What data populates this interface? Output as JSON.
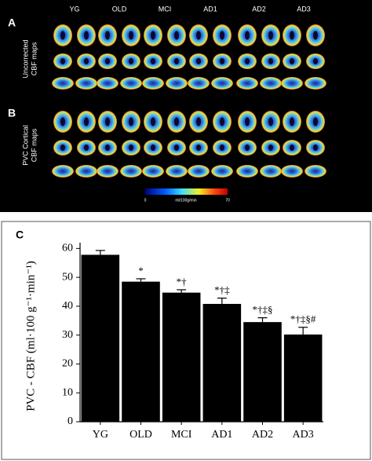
{
  "panels": {
    "a_label": "A",
    "b_label": "B",
    "columns": [
      "YG",
      "OLD",
      "MCI",
      "AD1",
      "AD2",
      "AD3"
    ],
    "a_side": [
      "Uncorrected",
      "CBF maps"
    ],
    "b_side": [
      "PVC Cortical",
      "CBF maps"
    ],
    "colorbar": {
      "min": "0",
      "unit": "ml/100g/min",
      "max": "70"
    }
  },
  "chart_data": {
    "type": "bar",
    "panel_label": "C",
    "y_label": "PVC - CBF (ml·100 g⁻¹·min⁻¹)",
    "categories": [
      "YG",
      "OLD",
      "MCI",
      "AD1",
      "AD2",
      "AD3"
    ],
    "values": [
      57.8,
      48.5,
      44.7,
      40.8,
      34.5,
      30.2
    ],
    "errors": [
      1.5,
      1,
      1,
      2,
      1.5,
      2.5
    ],
    "annotations": [
      null,
      "*",
      "*†",
      "*†‡",
      "*†‡§",
      "*†‡§#"
    ],
    "color": "#000000",
    "ylim": [
      0,
      62
    ],
    "yticks": [
      0,
      10,
      20,
      30,
      40,
      50,
      60
    ]
  }
}
